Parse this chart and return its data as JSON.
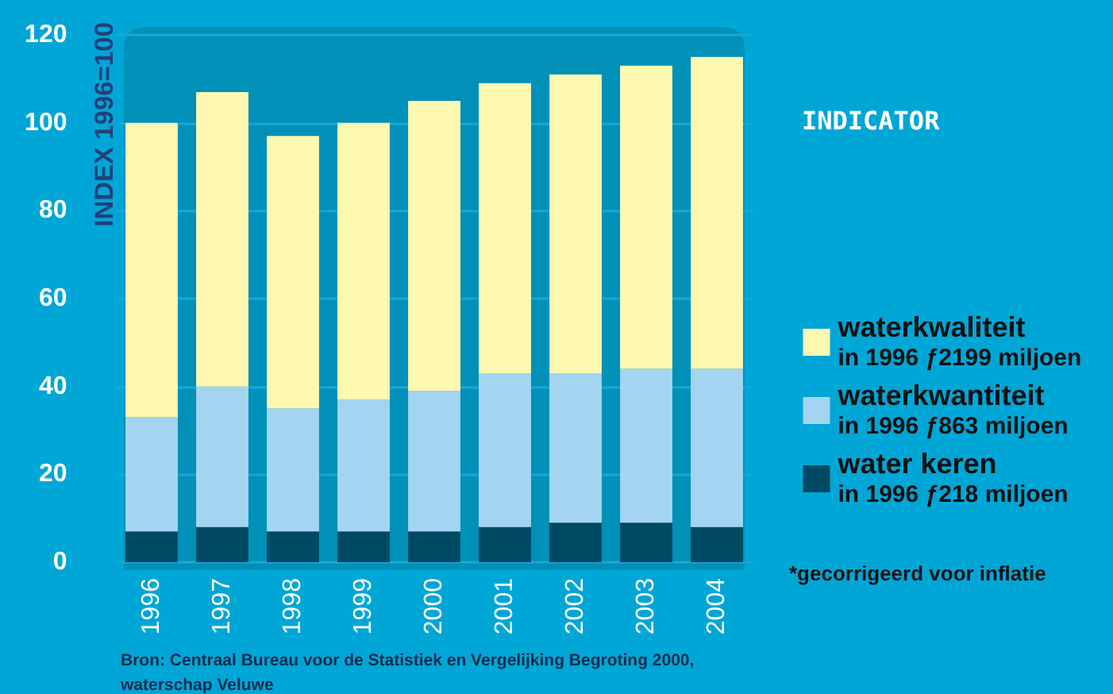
{
  "chart_data": {
    "type": "bar",
    "stacked": true,
    "title": "INDICATOR",
    "ylabel": "INDEX 1996=100",
    "categories": [
      "1996",
      "1997",
      "1998",
      "1999",
      "2000",
      "2001",
      "2002",
      "2003",
      "2004"
    ],
    "series": [
      {
        "name": "water keren\nin 1996 ƒ218 miljoen",
        "color": "#004a64",
        "values": [
          7,
          8,
          7,
          7,
          7,
          8,
          9,
          9,
          8
        ]
      },
      {
        "name": "waterkwantiteit\nin 1996 ƒ863 miljoen",
        "color": "#a3d5f0",
        "values": [
          26,
          32,
          28,
          30,
          32,
          35,
          34,
          35,
          36
        ]
      },
      {
        "name": "waterkwaliteit\nin 1996 ƒ2199 miljoen",
        "color": "#fff8b0",
        "values": [
          67,
          67,
          62,
          63,
          66,
          66,
          68,
          69,
          71
        ]
      }
    ],
    "ylim": [
      0,
      120
    ],
    "yticks": [
      0,
      20,
      40,
      60,
      80,
      100,
      120
    ],
    "grid": "y",
    "legend": "right",
    "annotations": [
      "*gecorrigeerd voor inflatie",
      "Bron: Centraal Bureau voor de Statistiek en Vergelijking Begroting 2000, waterschap Veluwe"
    ]
  }
}
